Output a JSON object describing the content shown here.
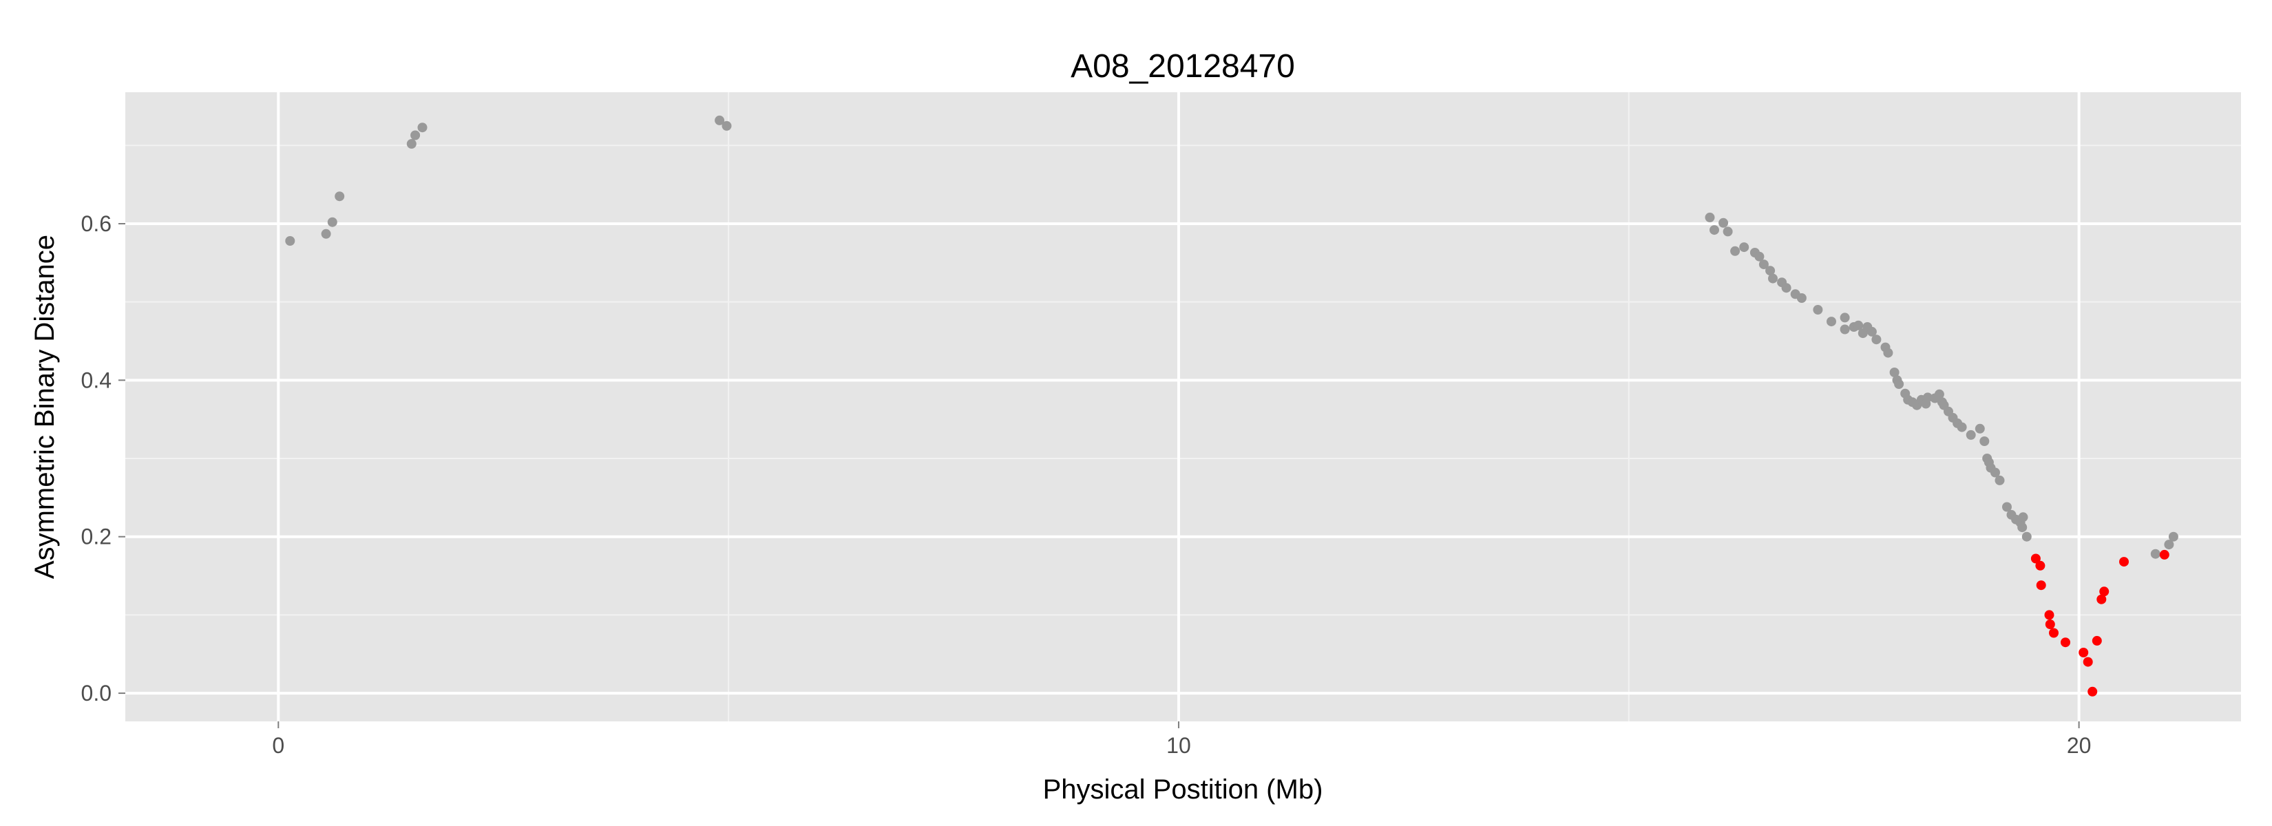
{
  "chart_data": {
    "type": "scatter",
    "title": "A08_20128470",
    "xlabel": "Physical Postition (Mb)",
    "ylabel": "Asymmetric Binary Distance",
    "xlim": [
      -1.7,
      21.8
    ],
    "ylim": [
      -0.036,
      0.768
    ],
    "x_ticks": [
      0,
      10,
      20
    ],
    "x_tick_labels": [
      "0",
      "10",
      "20"
    ],
    "x_minor_ticks": [
      5,
      15
    ],
    "y_ticks": [
      0.0,
      0.2,
      0.4,
      0.6
    ],
    "y_tick_labels": [
      "0.0",
      "0.2",
      "0.4",
      "0.6"
    ],
    "y_minor_ticks": [
      0.1,
      0.3,
      0.5,
      0.7
    ],
    "grid": true,
    "legend": "none",
    "colors": {
      "panel": "#e5e5e5",
      "grid": "#ffffff",
      "default": "#999999",
      "highlight": "#ff0000"
    },
    "series": [
      {
        "color": "#999999",
        "points": [
          [
            0.13,
            0.578
          ],
          [
            0.53,
            0.587
          ],
          [
            0.6,
            0.602
          ],
          [
            0.68,
            0.635
          ],
          [
            1.48,
            0.702
          ],
          [
            1.52,
            0.713
          ],
          [
            1.6,
            0.723
          ],
          [
            4.9,
            0.732
          ],
          [
            4.98,
            0.725
          ],
          [
            15.9,
            0.608
          ],
          [
            15.95,
            0.592
          ],
          [
            16.05,
            0.601
          ],
          [
            16.1,
            0.59
          ],
          [
            16.18,
            0.565
          ],
          [
            16.28,
            0.57
          ],
          [
            16.4,
            0.563
          ],
          [
            16.45,
            0.558
          ],
          [
            16.5,
            0.548
          ],
          [
            16.57,
            0.54
          ],
          [
            16.6,
            0.53
          ],
          [
            16.7,
            0.525
          ],
          [
            16.75,
            0.518
          ],
          [
            16.85,
            0.51
          ],
          [
            16.92,
            0.505
          ],
          [
            17.1,
            0.49
          ],
          [
            17.25,
            0.475
          ],
          [
            17.4,
            0.48
          ],
          [
            17.4,
            0.465
          ],
          [
            17.5,
            0.468
          ],
          [
            17.55,
            0.47
          ],
          [
            17.6,
            0.46
          ],
          [
            17.65,
            0.468
          ],
          [
            17.7,
            0.462
          ],
          [
            17.75,
            0.452
          ],
          [
            17.85,
            0.442
          ],
          [
            17.88,
            0.435
          ],
          [
            17.95,
            0.41
          ],
          [
            17.98,
            0.4
          ],
          [
            18.0,
            0.395
          ],
          [
            18.07,
            0.383
          ],
          [
            18.1,
            0.375
          ],
          [
            18.15,
            0.372
          ],
          [
            18.2,
            0.368
          ],
          [
            18.25,
            0.375
          ],
          [
            18.3,
            0.37
          ],
          [
            18.32,
            0.378
          ],
          [
            18.4,
            0.377
          ],
          [
            18.45,
            0.382
          ],
          [
            18.48,
            0.372
          ],
          [
            18.5,
            0.368
          ],
          [
            18.55,
            0.36
          ],
          [
            18.6,
            0.352
          ],
          [
            18.65,
            0.345
          ],
          [
            18.7,
            0.34
          ],
          [
            18.8,
            0.33
          ],
          [
            18.9,
            0.338
          ],
          [
            18.95,
            0.322
          ],
          [
            18.98,
            0.3
          ],
          [
            19.0,
            0.295
          ],
          [
            19.02,
            0.288
          ],
          [
            19.07,
            0.282
          ],
          [
            19.12,
            0.272
          ],
          [
            19.2,
            0.238
          ],
          [
            19.25,
            0.228
          ],
          [
            19.3,
            0.222
          ],
          [
            19.35,
            0.218
          ],
          [
            19.37,
            0.212
          ],
          [
            19.38,
            0.225
          ],
          [
            19.42,
            0.2
          ],
          [
            20.85,
            0.178
          ],
          [
            21.0,
            0.19
          ],
          [
            21.05,
            0.2
          ]
        ]
      },
      {
        "color": "#ff0000",
        "points": [
          [
            19.52,
            0.172
          ],
          [
            19.57,
            0.163
          ],
          [
            19.58,
            0.138
          ],
          [
            19.67,
            0.1
          ],
          [
            19.68,
            0.088
          ],
          [
            19.72,
            0.077
          ],
          [
            19.85,
            0.065
          ],
          [
            20.05,
            0.052
          ],
          [
            20.1,
            0.04
          ],
          [
            20.15,
            0.002
          ],
          [
            20.2,
            0.067
          ],
          [
            20.25,
            0.12
          ],
          [
            20.28,
            0.13
          ],
          [
            20.5,
            0.168
          ],
          [
            20.95,
            0.177
          ]
        ]
      }
    ]
  }
}
